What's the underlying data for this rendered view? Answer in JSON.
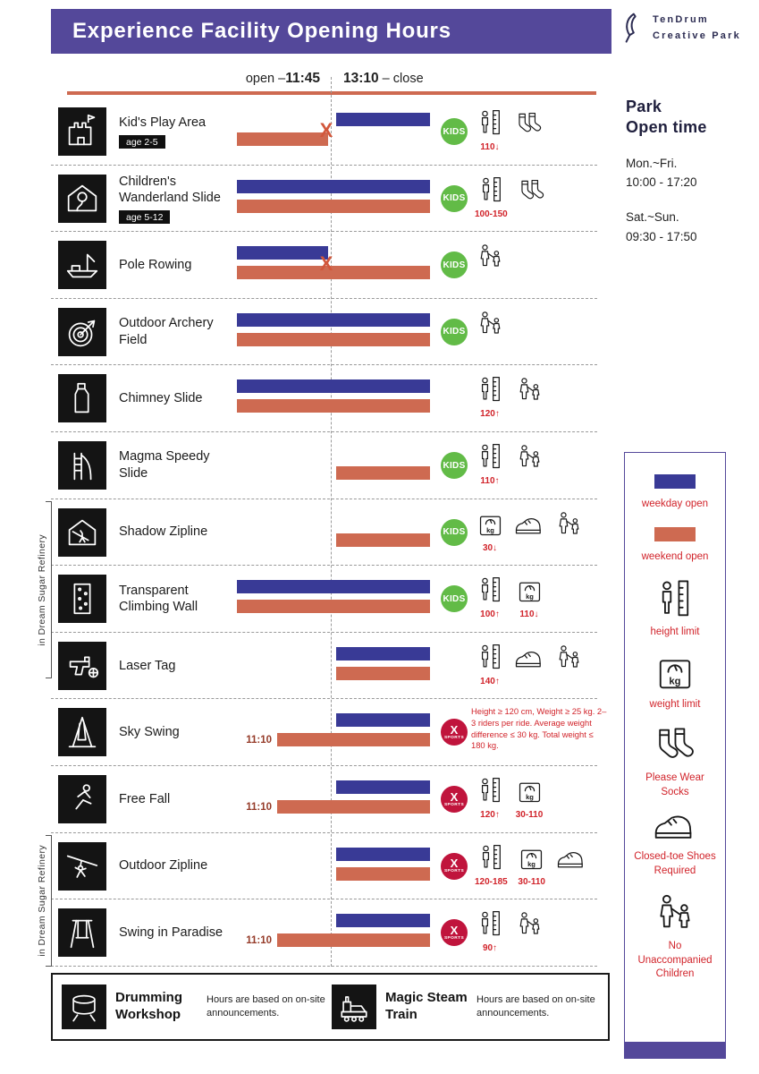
{
  "header": {
    "title": "Experience Facility Opening Hours",
    "brand_line1": "TenDrum",
    "brand_line2": "Creative Park"
  },
  "timeline": {
    "open_prefix": "open –",
    "open_time": "11:45",
    "close_time": "13:10",
    "close_suffix": " – close"
  },
  "marks": {
    "closed_x": "X"
  },
  "badges": {
    "kids": "KIDS",
    "xsports_x": "X",
    "xsports_text": "SPORTS"
  },
  "colors": {
    "header_purple": "#54489a",
    "weekday_blue": "#393a96",
    "weekend_orange": "#ce6a51",
    "kids_green": "#62bb47",
    "sports_red": "#c0143c",
    "accent_red": "#d1232a"
  },
  "park_open_time": {
    "title_line1": "Park",
    "title_line2": "Open time",
    "weekday_label": "Mon.~Fri.",
    "weekday_hours": "10:00 - 17:20",
    "weekend_label": "Sat.~Sun.",
    "weekend_hours": "09:30 - 17:50"
  },
  "side_labels": {
    "first": "in Dream Sugar Refinery",
    "second": "in Dream Sugar Refinery"
  },
  "facilities": [
    {
      "name": "Kid's Play Area",
      "icon": "castle",
      "age": "age 2-5",
      "weekday_bar": "right",
      "weekend_bar": "left",
      "x_mark": true,
      "badge": "kids",
      "start_label": "",
      "note": "",
      "limits": [
        {
          "icon": "height",
          "value": "110↓"
        },
        {
          "icon": "socks",
          "value": ""
        }
      ]
    },
    {
      "name": "Children's Wanderland Slide",
      "icon": "slidehouse",
      "age": "age 5-12",
      "weekday_bar": "full",
      "weekend_bar": "full",
      "x_mark": false,
      "badge": "kids",
      "start_label": "",
      "note": "",
      "limits": [
        {
          "icon": "height",
          "value": "100-150"
        },
        {
          "icon": "socks",
          "value": ""
        }
      ]
    },
    {
      "name": "Pole Rowing",
      "icon": "boat",
      "age": "",
      "weekday_bar": "left",
      "weekend_bar": "full",
      "x_mark": true,
      "badge": "kids",
      "start_label": "",
      "note": "",
      "limits": [
        {
          "icon": "adult",
          "value": ""
        }
      ]
    },
    {
      "name": "Outdoor Archery Field",
      "icon": "target",
      "age": "",
      "weekday_bar": "full",
      "weekend_bar": "full",
      "x_mark": false,
      "badge": "kids",
      "start_label": "",
      "note": "",
      "limits": [
        {
          "icon": "adult",
          "value": ""
        }
      ]
    },
    {
      "name": "Chimney Slide",
      "icon": "chimney",
      "age": "",
      "weekday_bar": "full",
      "weekend_bar": "full",
      "x_mark": false,
      "badge": "none",
      "start_label": "",
      "note": "",
      "limits": [
        {
          "icon": "height",
          "value": "120↑"
        },
        {
          "icon": "adult",
          "value": ""
        }
      ]
    },
    {
      "name": "Magma Speedy Slide",
      "icon": "magmaslide",
      "age": "",
      "weekday_bar": "none",
      "weekend_bar": "right",
      "x_mark": false,
      "badge": "kids",
      "start_label": "",
      "note": "",
      "limits": [
        {
          "icon": "height",
          "value": "110↑"
        },
        {
          "icon": "adult",
          "value": ""
        }
      ]
    },
    {
      "name": "Shadow Zipline",
      "icon": "shadowzip",
      "age": "",
      "weekday_bar": "none",
      "weekend_bar": "right",
      "x_mark": false,
      "badge": "kids",
      "start_label": "",
      "note": "",
      "limits": [
        {
          "icon": "weight",
          "value": "30↓"
        },
        {
          "icon": "shoe",
          "value": ""
        },
        {
          "icon": "adult",
          "value": ""
        }
      ]
    },
    {
      "name": "Transparent Climbing Wall",
      "icon": "climbwall",
      "age": "",
      "weekday_bar": "full",
      "weekend_bar": "full",
      "x_mark": false,
      "badge": "kids",
      "start_label": "",
      "note": "",
      "limits": [
        {
          "icon": "height",
          "value": "100↑"
        },
        {
          "icon": "weight",
          "value": "110↓"
        }
      ]
    },
    {
      "name": "Laser Tag",
      "icon": "lasergun",
      "age": "",
      "weekday_bar": "right",
      "weekend_bar": "right",
      "x_mark": false,
      "badge": "none",
      "start_label": "",
      "note": "",
      "limits": [
        {
          "icon": "height",
          "value": "140↑"
        },
        {
          "icon": "shoe",
          "value": ""
        },
        {
          "icon": "adult",
          "value": ""
        }
      ]
    },
    {
      "name": "Sky Swing",
      "icon": "skyswing",
      "age": "",
      "weekday_bar": "right",
      "weekend_bar": "late",
      "x_mark": false,
      "badge": "xsports",
      "start_label": "11:10",
      "note": "Height ≥ 120 cm, Weight ≥ 25 kg. 2–3 riders per ride. Average weight difference ≤ 30 kg. Total weight ≤ 180 kg.",
      "limits": []
    },
    {
      "name": "Free Fall",
      "icon": "freefall",
      "age": "",
      "weekday_bar": "right",
      "weekend_bar": "late",
      "x_mark": false,
      "badge": "xsports",
      "start_label": "11:10",
      "note": "",
      "limits": [
        {
          "icon": "height",
          "value": "120↑"
        },
        {
          "icon": "weight",
          "value": "30-110"
        }
      ]
    },
    {
      "name": "Outdoor Zipline",
      "icon": "outdoorzip",
      "age": "",
      "weekday_bar": "right",
      "weekend_bar": "right",
      "x_mark": false,
      "badge": "xsports",
      "start_label": "",
      "note": "",
      "limits": [
        {
          "icon": "height",
          "value": "120-185"
        },
        {
          "icon": "weight",
          "value": "30-110"
        },
        {
          "icon": "shoe",
          "value": ""
        }
      ]
    },
    {
      "name": "Swing in Paradise",
      "icon": "swing",
      "age": "",
      "weekday_bar": "right",
      "weekend_bar": "late",
      "x_mark": false,
      "badge": "xsports",
      "start_label": "11:10",
      "note": "",
      "limits": [
        {
          "icon": "height",
          "value": "90↑"
        },
        {
          "icon": "adult",
          "value": ""
        }
      ]
    }
  ],
  "legend": {
    "items": [
      {
        "type": "swatch-blue",
        "label": "weekday open"
      },
      {
        "type": "swatch-orange",
        "label": "weekend open"
      },
      {
        "type": "height",
        "label": "height limit"
      },
      {
        "type": "weight",
        "label": "weight limit"
      },
      {
        "type": "socks",
        "label": "Please Wear Socks"
      },
      {
        "type": "shoe",
        "label": "Closed-toe Shoes Required"
      },
      {
        "type": "adult",
        "label": "No Unaccompanied Children"
      }
    ]
  },
  "footer": {
    "items": [
      {
        "name": "Drumming Workshop",
        "icon": "drum",
        "note": "Hours are based on on-site announcements."
      },
      {
        "name": "Magic Steam Train",
        "icon": "train",
        "note": "Hours are based on on-site announcements."
      }
    ]
  }
}
